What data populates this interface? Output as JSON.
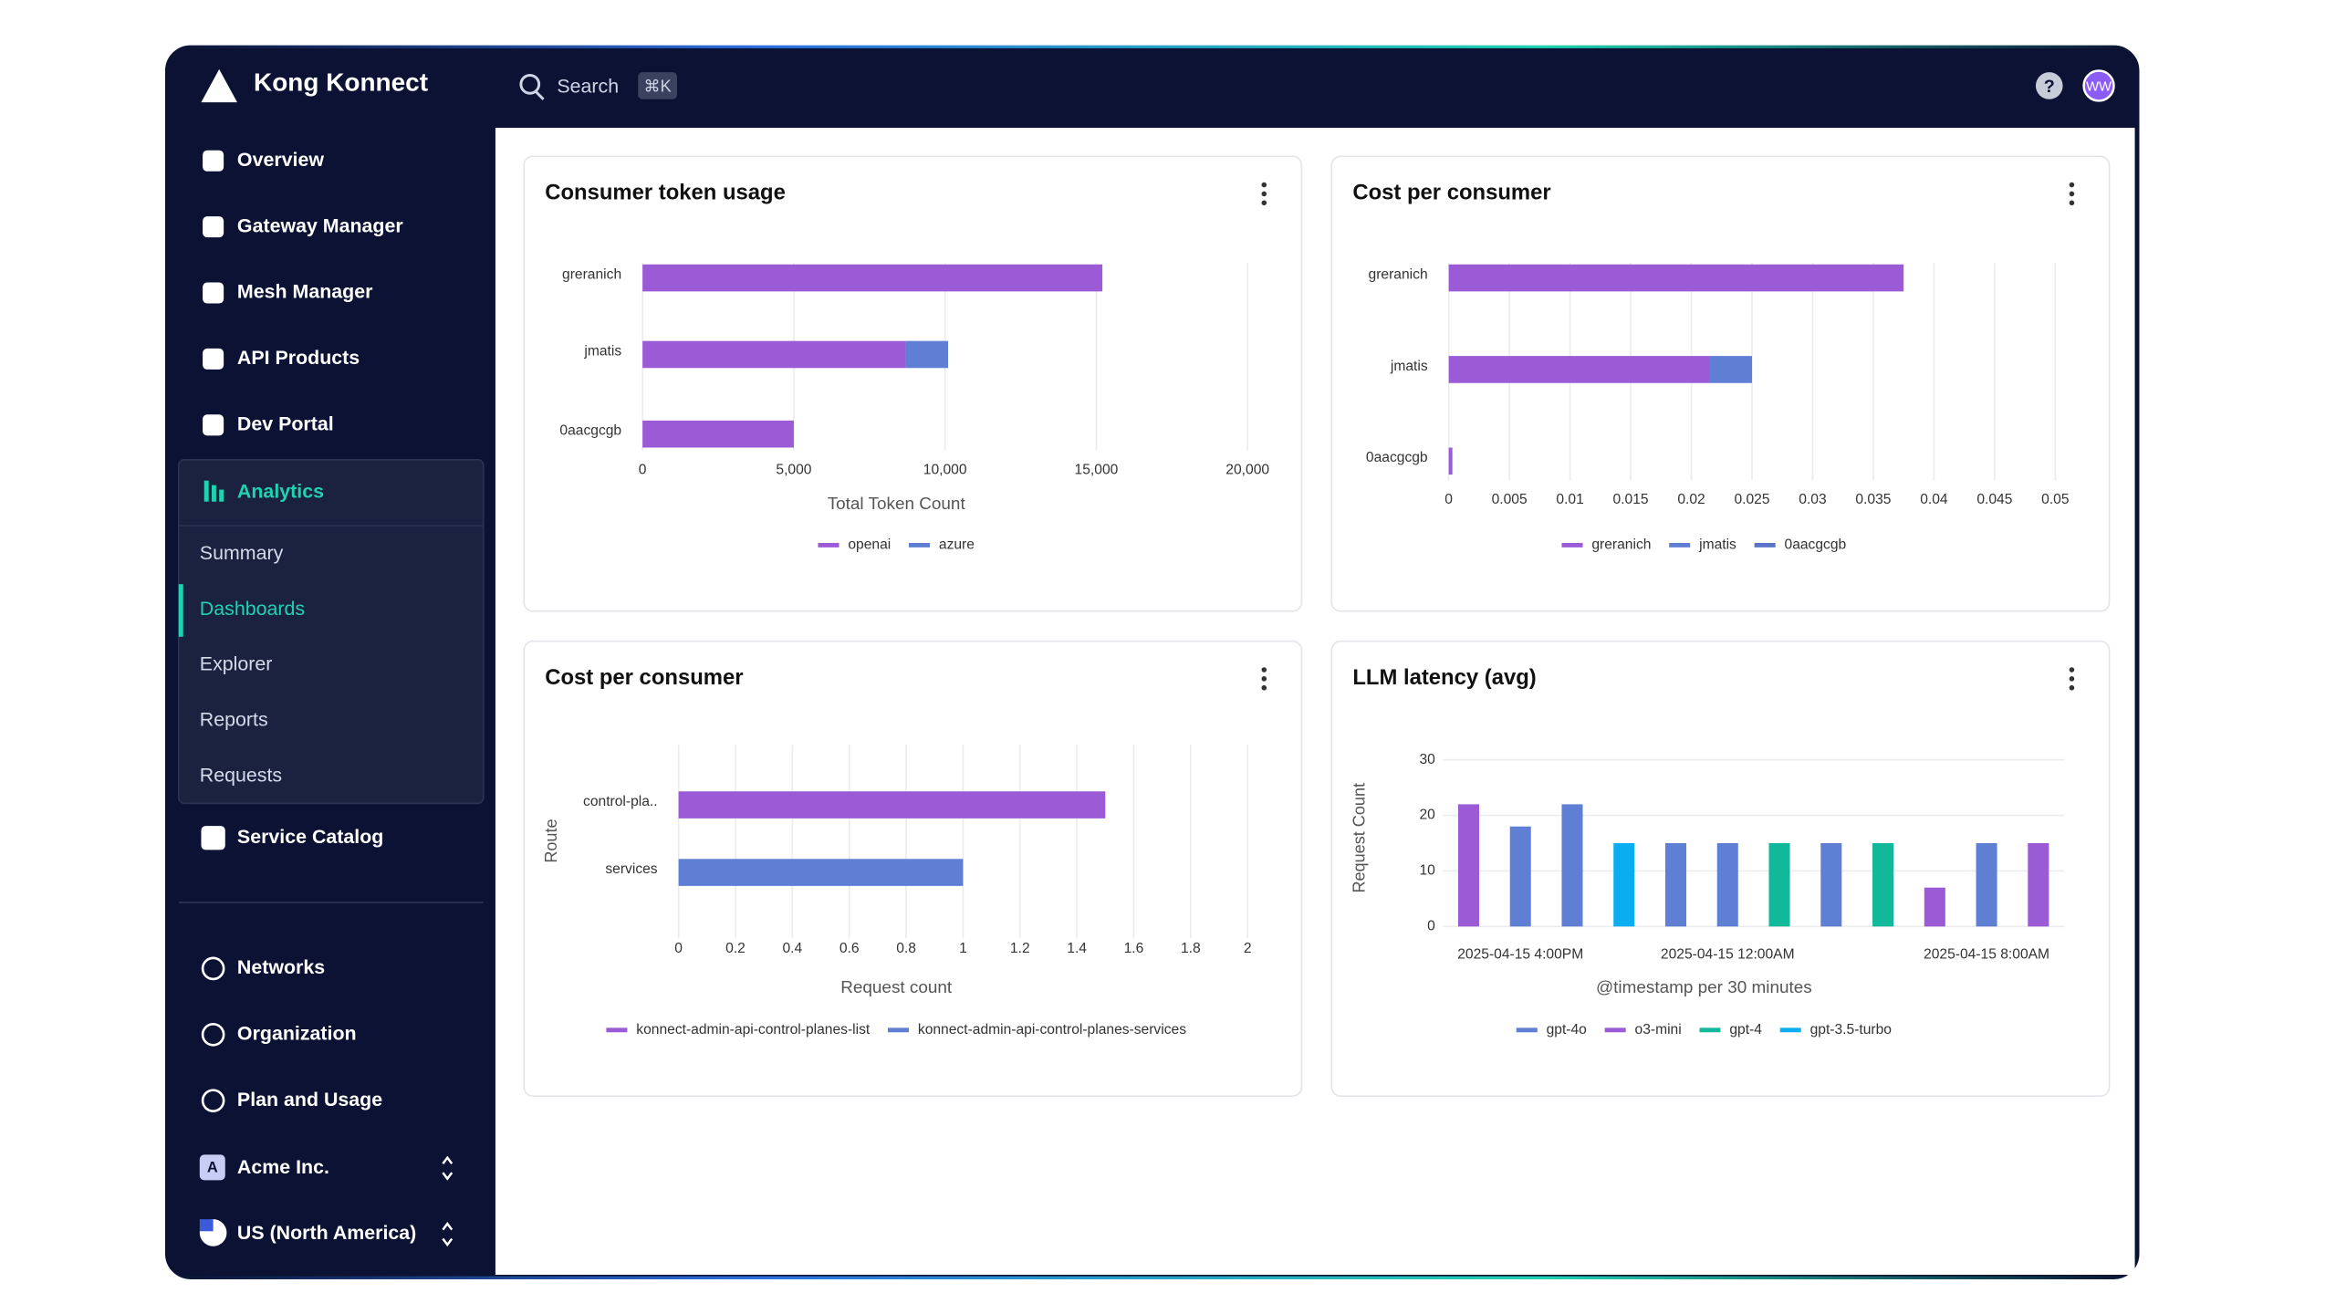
{
  "app": {
    "brand": "Kong Konnect",
    "search": "Search",
    "shortcut": "⌘K",
    "help": "?",
    "avatar": "WW"
  },
  "nav": {
    "main": [
      "Overview",
      "Gateway Manager",
      "Mesh Manager",
      "API Products",
      "Dev Portal"
    ],
    "analytics": "Analytics",
    "sub": [
      "Summary",
      "Dashboards",
      "Explorer",
      "Reports",
      "Requests"
    ],
    "catalog": "Service Catalog",
    "bottom": [
      "Networks",
      "Organization",
      "Plan and Usage"
    ],
    "org": {
      "badge": "A",
      "name": "Acme Inc."
    },
    "region": "US (North America)"
  },
  "chart_data": [
    {
      "type": "hbar",
      "stacked": true,
      "grid": true,
      "title": "Consumer token usage",
      "categories": [
        "greranich",
        "jmatis",
        "0aacgcgb"
      ],
      "series": [
        {
          "name": "openai",
          "color": "#9b5ad6",
          "values": [
            15200,
            8700,
            5000
          ]
        },
        {
          "name": "azure",
          "color": "#5f7fd4",
          "values": [
            0,
            1400,
            0
          ]
        }
      ],
      "xlim": [
        0,
        20000
      ],
      "xticks": [
        0,
        {
          "value": 5000,
          "label": "5,000"
        },
        {
          "value": 10000,
          "label": "10,000"
        },
        {
          "value": 15000,
          "label": "15,000"
        },
        {
          "value": 20000,
          "label": "20,000"
        }
      ],
      "xlabel": "Total Token Count"
    },
    {
      "type": "hbar",
      "stacked": true,
      "grid": true,
      "title": "Cost per consumer",
      "categories": [
        "greranich",
        "jmatis",
        "0aacgcgb"
      ],
      "series": [
        {
          "name": "greranich",
          "color": "#9b5ad6",
          "values": [
            0.0375,
            0.0215,
            0.0003
          ]
        },
        {
          "name": "jmatis",
          "color": "#5f7fd4",
          "values": [
            0,
            0.0035,
            0
          ]
        },
        {
          "name": "0aacgcgb",
          "color": "#5b74c9",
          "values": [
            0,
            0,
            0
          ]
        }
      ],
      "xlim": [
        0,
        0.05
      ],
      "xticks": [
        0,
        0.005,
        0.01,
        0.015,
        0.02,
        0.025,
        0.03,
        0.035,
        0.04,
        0.045,
        0.05
      ]
    },
    {
      "type": "hbar",
      "stacked": true,
      "grid": true,
      "title": "Cost per consumer",
      "categories": [
        "control-pla..",
        "services"
      ],
      "series": [
        {
          "name": "konnect-admin-api-control-planes-list",
          "color": "#9b5ad6",
          "values": [
            1.5,
            0
          ]
        },
        {
          "name": "konnect-admin-api-control-planes-services",
          "color": "#5f7fd4",
          "values": [
            0,
            1
          ]
        }
      ],
      "xlim": [
        0,
        2
      ],
      "xticks": [
        0,
        0.2,
        0.4,
        0.6,
        0.8,
        1,
        1.2,
        1.4,
        1.6,
        1.8,
        2
      ],
      "xlabel": "Request count",
      "ylabel": "Route"
    },
    {
      "type": "vbar",
      "grid": true,
      "title": "LLM latency (avg)",
      "categories": [
        null,
        "2025-04-15 4:00PM",
        null,
        null,
        null,
        "2025-04-15 12:00AM",
        null,
        null,
        null,
        null,
        "2025-04-15 8:00AM",
        null
      ],
      "series": [
        {
          "name": "gpt-4o",
          "color": "#5f7fd4",
          "values": [
            null,
            18,
            22,
            null,
            15,
            15,
            null,
            15,
            null,
            null,
            15,
            null
          ]
        },
        {
          "name": "o3-mini",
          "color": "#9b5ad6",
          "values": [
            22,
            null,
            null,
            null,
            null,
            null,
            null,
            null,
            null,
            7,
            null,
            15
          ]
        },
        {
          "name": "gpt-4",
          "color": "#12b89a",
          "values": [
            null,
            null,
            null,
            null,
            null,
            null,
            15,
            null,
            15,
            null,
            null,
            null
          ]
        },
        {
          "name": "gpt-3.5-turbo",
          "color": "#0aaef0",
          "values": [
            null,
            null,
            null,
            15,
            null,
            null,
            null,
            null,
            null,
            null,
            null,
            null
          ]
        }
      ],
      "ylim": [
        0,
        30
      ],
      "yticks": [
        0,
        10,
        20,
        30
      ],
      "xlabel": "@timestamp per 30 minutes",
      "ylabel": "Request Count"
    }
  ]
}
